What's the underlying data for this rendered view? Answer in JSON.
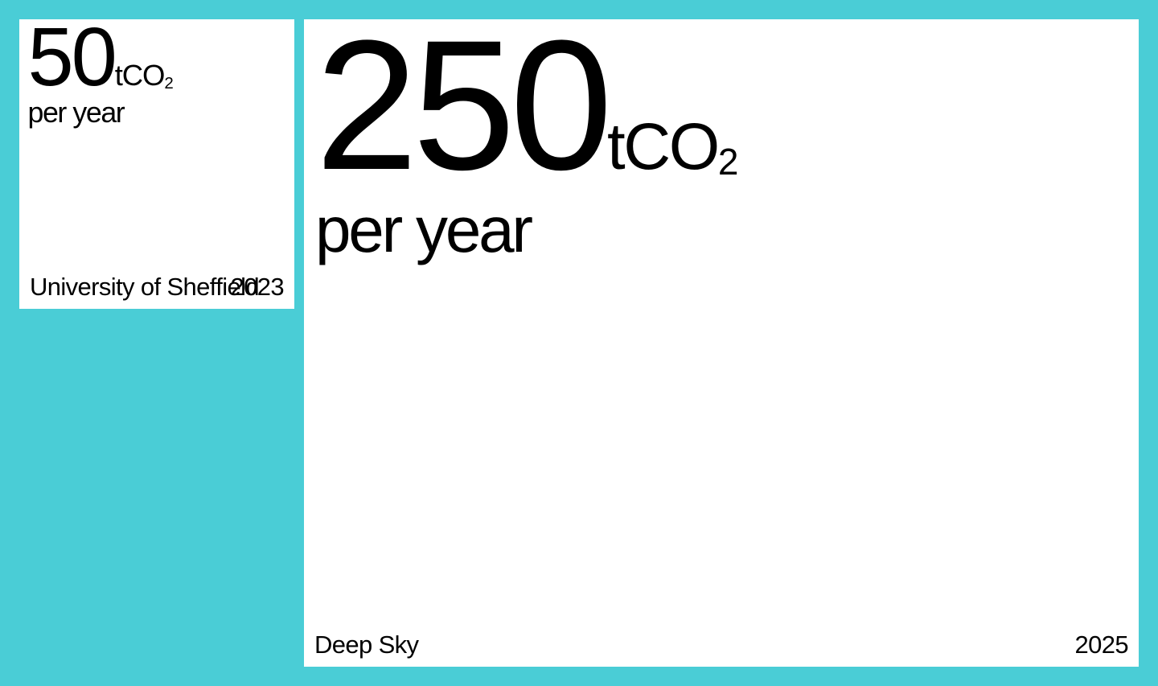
{
  "colors": {
    "background": "#4acdd6",
    "card": "#ffffff",
    "text": "#000000"
  },
  "chart_data": {
    "type": "bar",
    "categories": [
      "University of Sheffield",
      "Deep Sky"
    ],
    "series": [
      {
        "values": [
          50,
          250
        ],
        "years": [
          "2023",
          "2025"
        ]
      }
    ],
    "unit_prefix": "tCO",
    "unit_subscript": "2",
    "per_label": "per year",
    "value_labels": [
      "50",
      "250"
    ]
  }
}
